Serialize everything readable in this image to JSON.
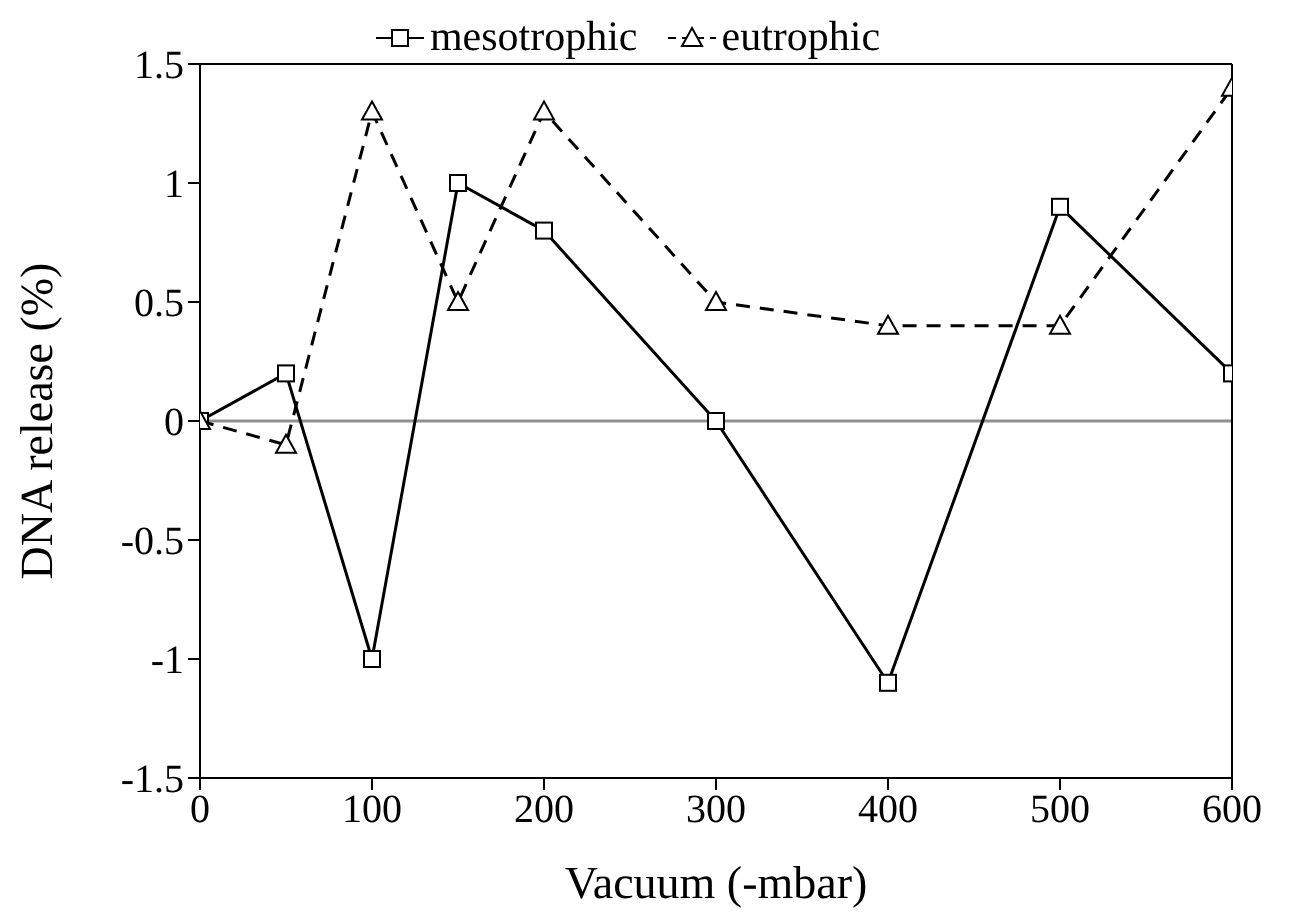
{
  "chart_data": {
    "type": "line",
    "xlabel": "Vacuum (-mbar)",
    "ylabel": "DNA release  (%)",
    "x": [
      0,
      50,
      100,
      150,
      200,
      300,
      400,
      500,
      600
    ],
    "series": [
      {
        "name": "mesotrophic",
        "color": "#000000",
        "marker": "square",
        "line_style": "solid",
        "values": [
          0,
          0.2,
          -1.0,
          1.0,
          0.8,
          0,
          -1.1,
          0.9,
          0.2
        ]
      },
      {
        "name": "eutrophic",
        "color": "#000000",
        "marker": "triangle",
        "line_style": "dashed",
        "values": [
          0,
          -0.1,
          1.3,
          0.5,
          1.3,
          0.5,
          0.4,
          0.4,
          1.4
        ]
      }
    ],
    "xlim": [
      0,
      600
    ],
    "xticks": [
      0,
      100,
      200,
      300,
      400,
      500,
      600
    ],
    "ylim": [
      -1.5,
      1.5
    ],
    "yticks": [
      -1.5,
      -1,
      -0.5,
      0,
      0.5,
      1,
      1.5
    ],
    "ref_lines": [
      {
        "axis": "y",
        "value": 0,
        "color": "#909090"
      }
    ],
    "grid": false,
    "legend": "top"
  }
}
